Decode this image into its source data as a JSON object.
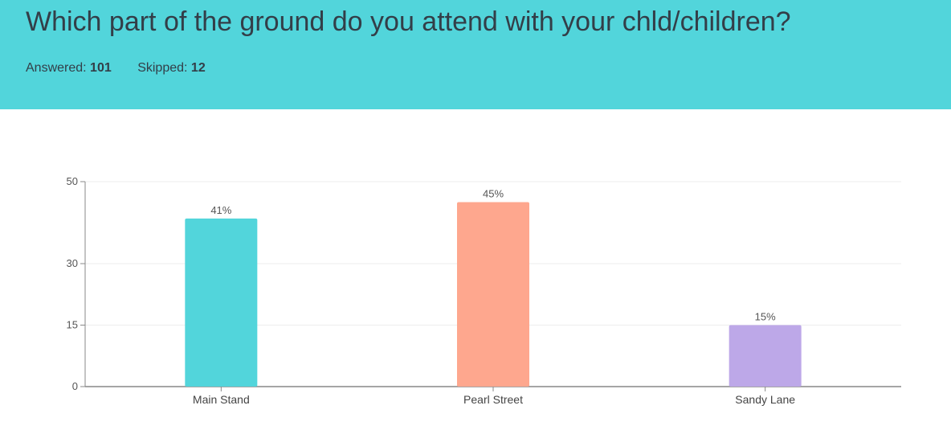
{
  "question": {
    "title": "Which part of the ground do you attend with your chld/children?",
    "answered_label": "Answered:",
    "answered_value": "101",
    "skipped_label": "Skipped:",
    "skipped_value": "12"
  },
  "colors": {
    "header_bg": "#52d5db",
    "bar_colors": [
      "#52d5db",
      "#fea78e",
      "#bda8e8"
    ],
    "axis": "#888888",
    "grid": "#eeeeee"
  },
  "chart_data": {
    "type": "bar",
    "categories": [
      "Main Stand",
      "Pearl Street",
      "Sandy Lane"
    ],
    "values": [
      41,
      45,
      15
    ],
    "data_labels": [
      "41%",
      "45%",
      "15%"
    ],
    "yticks": [
      0,
      15,
      30,
      50
    ],
    "ylim": [
      0,
      50
    ],
    "title": "",
    "xlabel": "",
    "ylabel": "",
    "grid": true
  }
}
